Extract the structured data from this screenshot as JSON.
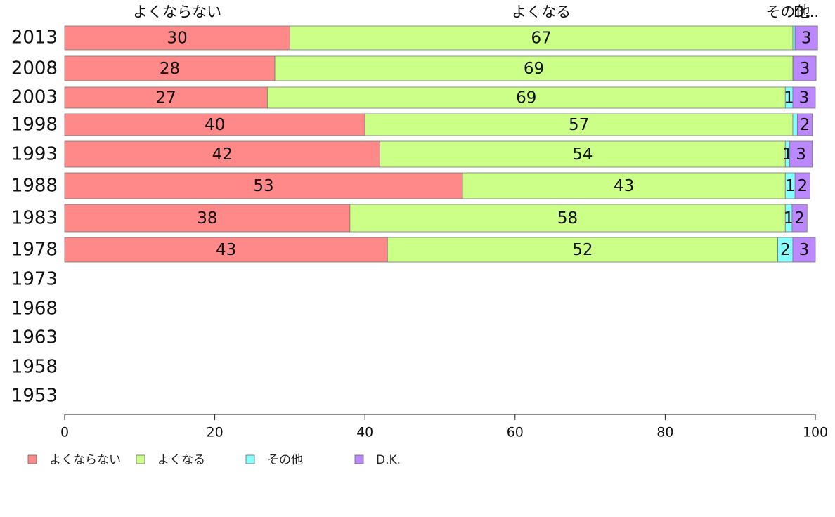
{
  "chart_data": {
    "type": "bar",
    "orientation": "horizontal",
    "stacked": true,
    "categories": [
      "2013",
      "2008",
      "2003",
      "1998",
      "1993",
      "1988",
      "1983",
      "1978",
      "1973",
      "1968",
      "1963",
      "1958",
      "1953"
    ],
    "series": [
      {
        "name": "よくならない",
        "color": "#ff8888",
        "values": [
          30,
          28,
          27,
          40,
          42,
          53,
          38,
          43,
          null,
          null,
          null,
          null,
          null
        ]
      },
      {
        "name": "よくなる",
        "color": "#ccff88",
        "values": [
          67,
          69,
          69,
          57,
          54,
          43,
          58,
          52,
          null,
          null,
          null,
          null,
          null
        ]
      },
      {
        "name": "その他",
        "color": "#88ffff",
        "values": [
          0.3,
          0.1,
          1,
          0.6,
          0.6,
          1.3,
          0.9,
          2,
          null,
          null,
          null,
          null,
          null
        ]
      },
      {
        "name": "D.K.",
        "color": "#bb88ff",
        "values": [
          3,
          3,
          3,
          2,
          3,
          2,
          2,
          3,
          null,
          null,
          null,
          null,
          null
        ]
      }
    ],
    "segment_labels": [
      [
        "30",
        "67",
        "",
        "3"
      ],
      [
        "28",
        "69",
        "",
        "3"
      ],
      [
        "27",
        "69",
        "1",
        "3"
      ],
      [
        "40",
        "57",
        "",
        "2"
      ],
      [
        "42",
        "54",
        "1",
        "3"
      ],
      [
        "53",
        "43",
        "1",
        "2"
      ],
      [
        "38",
        "58",
        "1",
        "2"
      ],
      [
        "43",
        "52",
        "2",
        "3"
      ]
    ],
    "top_labels": [
      "よくならない",
      "よくなる",
      "その他",
      "D..."
    ],
    "xlim": [
      0,
      100
    ],
    "xticks": [
      "0",
      "20",
      "40",
      "60",
      "80",
      "100"
    ],
    "legend_position": "bottom-left",
    "grid": false
  }
}
